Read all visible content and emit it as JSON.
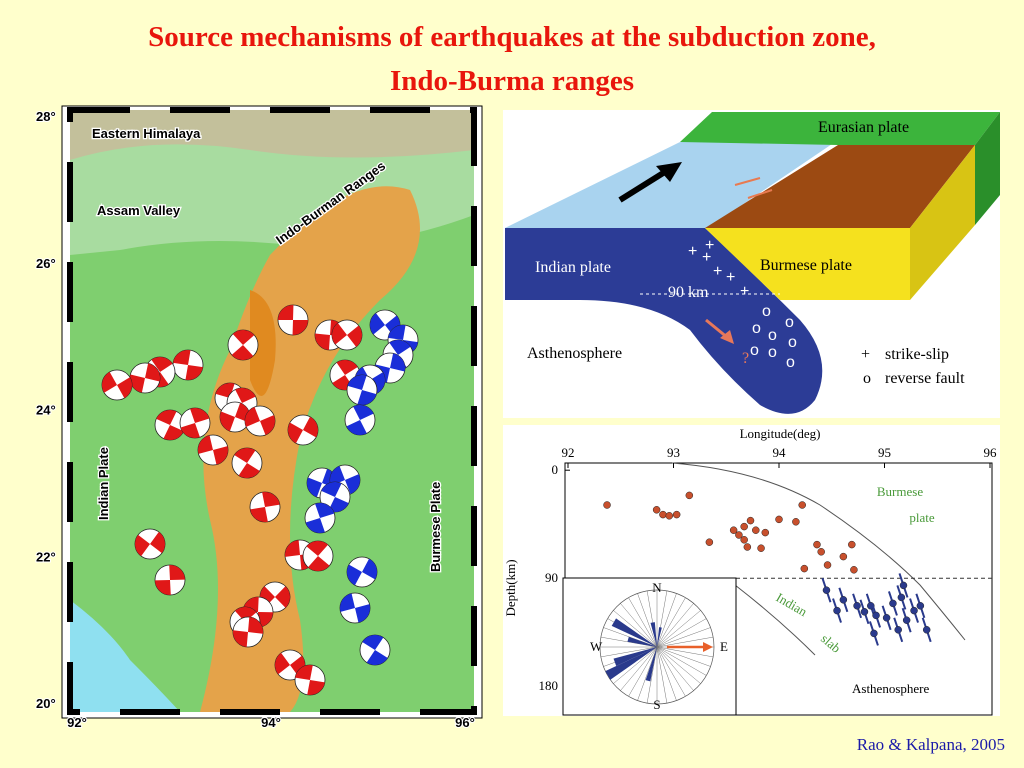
{
  "title": [
    "Source mechanisms of earthquakes at the subduction zone,",
    "Indo-Burma ranges"
  ],
  "map": {
    "lat_ticks": [
      {
        "value": 28,
        "label": "28°"
      },
      {
        "value": 26,
        "label": "26°"
      },
      {
        "value": 24,
        "label": "24°"
      },
      {
        "value": 22,
        "label": "22°"
      },
      {
        "value": 20,
        "label": "20°"
      }
    ],
    "lon_ticks": [
      {
        "value": 92,
        "label": "92°"
      },
      {
        "value": 94,
        "label": "94°"
      },
      {
        "value": 96,
        "label": "96°"
      }
    ],
    "labels": {
      "himalaya": "Eastern Himalaya",
      "assam": "Assam Valley",
      "ranges": "Indo-Burman Ranges",
      "indian": "Indian Plate",
      "burmese": "Burmese Plate"
    }
  },
  "block_diagram": {
    "eurasian": "Eurasian plate",
    "indian": "Indian plate",
    "burmese": "Burmese plate",
    "depth": "90 km",
    "asthenosphere": "Asthenosphere",
    "question": "?",
    "legend": [
      {
        "symbol": "+",
        "label": "strike-slip"
      },
      {
        "symbol": "o",
        "label": "reverse fault"
      }
    ]
  },
  "depth_section": {
    "type": "scatter",
    "x_label": "Longitude(deg)",
    "y_label": "Depth(km)",
    "xlim": [
      92,
      96
    ],
    "ylim": [
      -6,
      204
    ],
    "xticks": [
      92,
      93,
      94,
      95,
      96
    ],
    "yticks": [
      0,
      90,
      180
    ],
    "series": [
      {
        "color": "#c8502d",
        "x": [
          92.37,
          92.84,
          92.9,
          92.96,
          93.03,
          93.15,
          93.34,
          93.57,
          93.62,
          93.67,
          93.67,
          93.7,
          93.73,
          93.78,
          93.83,
          93.87,
          94.0,
          94.16,
          94.22,
          94.36,
          94.4,
          94.46,
          94.61,
          94.69,
          94.71,
          94.24
        ],
        "y": [
          29,
          33,
          37,
          38,
          37,
          21,
          60,
          50,
          54,
          47,
          58,
          64,
          42,
          50,
          65,
          52,
          41,
          43,
          29,
          62,
          68,
          79,
          72,
          62,
          83,
          82
        ]
      },
      {
        "color": "#2a3a8c",
        "x": [
          94.45,
          94.55,
          94.61,
          94.74,
          94.81,
          94.87,
          94.9,
          94.92,
          95.02,
          95.08,
          95.13,
          95.16,
          95.18,
          95.21,
          95.28,
          95.34,
          95.4
        ],
        "y": [
          100,
          117,
          108,
          113,
          118,
          113,
          136,
          121,
          123,
          111,
          133,
          106,
          96,
          125,
          117,
          113,
          133
        ]
      }
    ],
    "labels": {
      "burmese": "Burmese",
      "plate": "plate",
      "indian": "Indian",
      "slab": "slab",
      "asthenosphere": "Asthenosphere"
    },
    "rose": {
      "n": "N",
      "s": "S",
      "e": "E",
      "w": "W"
    }
  },
  "citation": "Rao & Kalpana, 2005"
}
